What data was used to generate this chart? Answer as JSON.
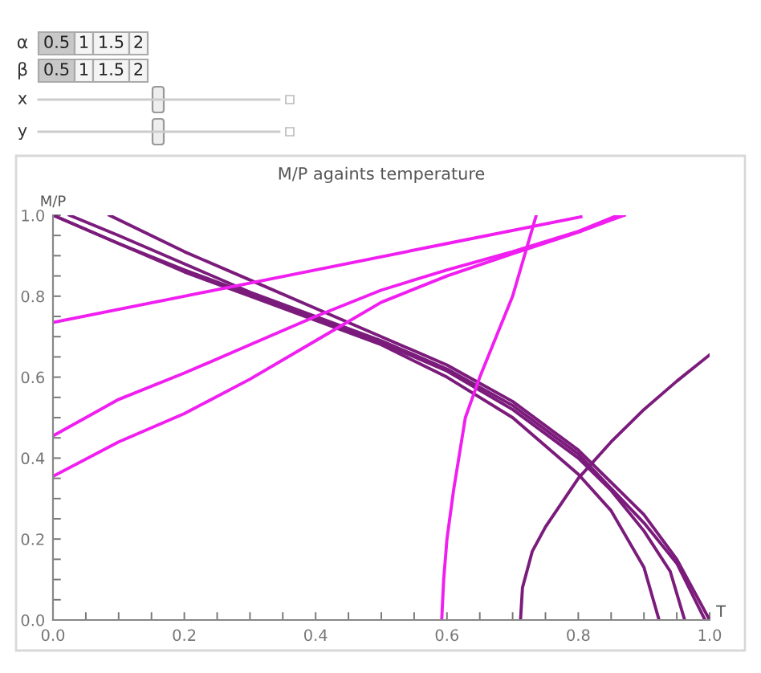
{
  "chart_data": {
    "type": "line",
    "title": "M/P againts temperature",
    "xlabel": "T",
    "ylabel": "M/P",
    "annotations": [
      "α",
      "0.5",
      "1",
      "1.5",
      "2",
      "β",
      "0.5",
      "1",
      "1.5",
      "2",
      "x",
      "y"
    ],
    "xlim": [
      0,
      1.0
    ],
    "ylim": [
      0,
      1.0
    ],
    "xticks": [
      {
        "value": 0,
        "label": "0.0"
      },
      {
        "value": 0.05,
        "label": null
      },
      {
        "value": 0.1,
        "label": null
      },
      {
        "value": 0.15,
        "label": null
      },
      {
        "value": 0.2,
        "label": "0.2"
      },
      {
        "value": 0.25,
        "label": null
      },
      {
        "value": 0.3,
        "label": null
      },
      {
        "value": 0.35,
        "label": null
      },
      {
        "value": 0.4,
        "label": "0.4"
      },
      {
        "value": 0.45,
        "label": null
      },
      {
        "value": 0.5,
        "label": null
      },
      {
        "value": 0.55,
        "label": null
      },
      {
        "value": 0.6,
        "label": "0.6"
      },
      {
        "value": 0.65,
        "label": null
      },
      {
        "value": 0.7,
        "label": null
      },
      {
        "value": 0.75,
        "label": null
      },
      {
        "value": 0.8,
        "label": "0.8"
      },
      {
        "value": 0.85,
        "label": null
      },
      {
        "value": 0.9,
        "label": null
      },
      {
        "value": 0.95,
        "label": null
      },
      {
        "value": 1.0,
        "label": "1.0"
      }
    ],
    "yticks": [
      {
        "value": 0,
        "label": "0.0"
      },
      {
        "value": 0.05,
        "label": null
      },
      {
        "value": 0.1,
        "label": null
      },
      {
        "value": 0.15,
        "label": null
      },
      {
        "value": 0.2,
        "label": "0.2"
      },
      {
        "value": 0.25,
        "label": null
      },
      {
        "value": 0.3,
        "label": null
      },
      {
        "value": 0.35,
        "label": null
      },
      {
        "value": 0.4,
        "label": "0.4"
      },
      {
        "value": 0.45,
        "label": null
      },
      {
        "value": 0.5,
        "label": null
      },
      {
        "value": 0.55,
        "label": null
      },
      {
        "value": 0.6,
        "label": "0.6"
      },
      {
        "value": 0.65,
        "label": null
      },
      {
        "value": 0.7,
        "label": null
      },
      {
        "value": 0.75,
        "label": null
      },
      {
        "value": 0.8,
        "label": "0.8"
      },
      {
        "value": 0.85,
        "label": null
      },
      {
        "value": 0.9,
        "label": null
      },
      {
        "value": 0.95,
        "label": null
      },
      {
        "value": 1.0,
        "label": "1.0"
      }
    ],
    "grid": false,
    "marker": "none",
    "line_style": "solid",
    "series": [
      {
        "color": "#7b1b7b",
        "x": [
          0,
          0.1,
          0.2,
          0.3,
          0.4,
          0.5,
          0.6,
          0.7,
          0.8,
          0.85,
          0.9,
          0.923
        ],
        "values": [
          1.0,
          0.93,
          0.86,
          0.8,
          0.74,
          0.68,
          0.6,
          0.5,
          0.36,
          0.27,
          0.13,
          0
        ]
      },
      {
        "color": "#7b1b7b",
        "x": [
          0,
          0.1,
          0.2,
          0.3,
          0.4,
          0.5,
          0.6,
          0.7,
          0.8,
          0.85,
          0.9,
          0.94,
          0.962
        ],
        "values": [
          1.0,
          0.93,
          0.865,
          0.805,
          0.745,
          0.685,
          0.615,
          0.52,
          0.4,
          0.32,
          0.22,
          0.12,
          0
        ]
      },
      {
        "color": "#7b1b7b",
        "x": [
          0.025,
          0.1,
          0.2,
          0.3,
          0.4,
          0.5,
          0.6,
          0.7,
          0.8,
          0.9,
          0.95,
          0.993
        ],
        "values": [
          1.0,
          0.95,
          0.88,
          0.81,
          0.75,
          0.69,
          0.62,
          0.53,
          0.41,
          0.24,
          0.14,
          0
        ]
      },
      {
        "color": "#7b1b7b",
        "x": [
          0.086,
          0.2,
          0.3,
          0.4,
          0.5,
          0.6,
          0.7,
          0.8,
          0.9,
          0.95,
          1.0
        ],
        "values": [
          1.0,
          0.91,
          0.84,
          0.77,
          0.7,
          0.63,
          0.54,
          0.42,
          0.26,
          0.15,
          0
        ]
      },
      {
        "color": "#7b1b7b",
        "x": [
          0.712,
          0.715,
          0.73,
          0.75,
          0.8,
          0.85,
          0.9,
          0.95,
          1.0
        ],
        "values": [
          0,
          0.08,
          0.17,
          0.23,
          0.35,
          0.44,
          0.52,
          0.59,
          0.655
        ]
      },
      {
        "color": "#f01ef0",
        "x": [
          0,
          0.2,
          0.4,
          0.6,
          0.804
        ],
        "values": [
          0.735,
          0.8,
          0.865,
          0.93,
          0.996
        ]
      },
      {
        "color": "#f01ef0",
        "x": [
          0,
          0.1,
          0.2,
          0.3,
          0.4,
          0.5,
          0.6,
          0.7,
          0.8,
          0.86
        ],
        "values": [
          0.455,
          0.545,
          0.61,
          0.68,
          0.75,
          0.815,
          0.865,
          0.91,
          0.96,
          1.0
        ]
      },
      {
        "color": "#f01ef0",
        "x": [
          0,
          0.1,
          0.2,
          0.3,
          0.4,
          0.5,
          0.6,
          0.7,
          0.8,
          0.87
        ],
        "values": [
          0.355,
          0.44,
          0.51,
          0.595,
          0.69,
          0.785,
          0.85,
          0.905,
          0.958,
          1.0
        ]
      },
      {
        "color": "#f01ef0",
        "x": [
          0.592,
          0.595,
          0.6,
          0.61,
          0.628,
          0.65,
          0.7,
          0.736
        ],
        "values": [
          0,
          0.1,
          0.2,
          0.32,
          0.5,
          0.6,
          0.8,
          1.0
        ]
      }
    ]
  }
}
